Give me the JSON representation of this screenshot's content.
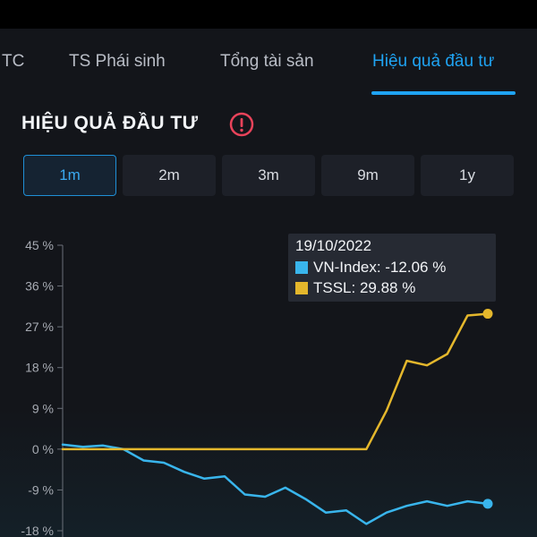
{
  "tabs": [
    {
      "label": "TC"
    },
    {
      "label": "TS Phái sinh"
    },
    {
      "label": "Tổng tài sản"
    },
    {
      "label": "Hiệu quả đầu tư",
      "active": true
    }
  ],
  "section": {
    "title": "HIỆU QUẢ ĐẦU TƯ",
    "alert_icon": "exclamation-circle-icon"
  },
  "periods": [
    {
      "label": "1m",
      "active": true
    },
    {
      "label": "2m"
    },
    {
      "label": "3m"
    },
    {
      "label": "9m"
    },
    {
      "label": "1y"
    }
  ],
  "colors": {
    "accent": "#1fa3f2",
    "alert": "#e8435a",
    "vnindex": "#39b5ec",
    "tssl": "#e4b72c"
  },
  "tooltip": {
    "date": "19/10/2022",
    "vnindex_text": "VN-Index: -12.06 %",
    "tssl_text": "TSSL: 29.88 %"
  },
  "chart_data": {
    "type": "line",
    "ytick_labels": [
      "45 %",
      "36 %",
      "27 %",
      "18 %",
      "9 %",
      "0 %",
      "-9 %",
      "-18 %"
    ],
    "ytick_values": [
      45,
      36,
      27,
      18,
      9,
      0,
      -9,
      -18
    ],
    "ylim": [
      -18,
      45
    ],
    "grid": false,
    "series": [
      {
        "name": "VN-Index",
        "values": [
          1,
          0.5,
          0.8,
          0,
          -2.5,
          -3,
          -5,
          -6.5,
          -6,
          -10,
          -10.5,
          -8.5,
          -11,
          -14,
          -13.5,
          -16.5,
          -14,
          -12.5,
          -11.5,
          -12.5,
          -11.5,
          -12.06
        ]
      },
      {
        "name": "TSSL",
        "values": [
          0,
          0,
          0,
          0,
          0,
          0,
          0,
          0,
          0,
          0,
          0,
          0,
          0,
          0,
          0,
          0,
          8.5,
          19.5,
          18.5,
          21,
          29.5,
          29.88
        ]
      }
    ]
  }
}
